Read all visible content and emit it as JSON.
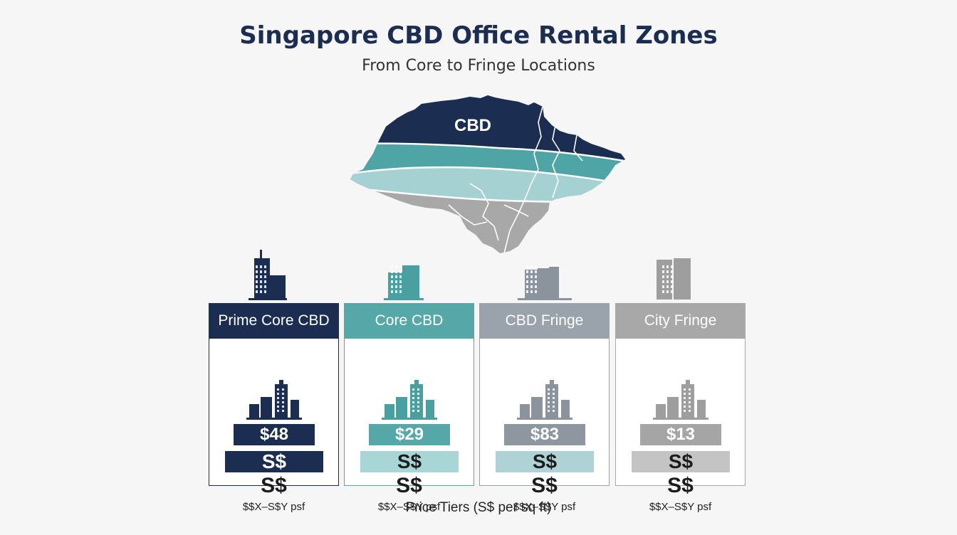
{
  "header": {
    "title": "Singapore CBD Office Rental Zones",
    "subtitle": "From Core to Fringe Locations"
  },
  "map": {
    "label": "CBD",
    "colors": {
      "core": "#1b2e52",
      "teal": "#4fa4a6",
      "light_teal": "#a6d1d3",
      "gray": "#a8a8a8"
    }
  },
  "zones": [
    {
      "name": "Prime Core CBD",
      "price": "$48",
      "tier_label": "S$",
      "tier_symbol": "S$",
      "range": "$$X–S$Y psf",
      "header_color": "#1b2e52",
      "price_color": "#1b2e52",
      "tier_bar_color": "#1b2e52",
      "tier_text_color": "#ffffff",
      "border_color": "#1b2e52",
      "icon_color": "#1b2e52"
    },
    {
      "name": "Core CBD",
      "price": "$29",
      "tier_label": "S$",
      "tier_symbol": "S$",
      "range": "$$X–S$Y psf",
      "header_color": "#55a7a8",
      "price_color": "#55a7a8",
      "tier_bar_color": "#a8d5d6",
      "tier_text_color": "#1c1c1c",
      "border_color": "#55a7a8",
      "icon_color": "#4a9fa1"
    },
    {
      "name": "CBD Fringe",
      "price": "$83",
      "tier_label": "S$",
      "tier_symbol": "S$",
      "range": "$$X–S$Y psf",
      "header_color": "#9aa3ac",
      "price_color": "#8e979f",
      "tier_bar_color": "#aed2d5",
      "tier_text_color": "#1c1c1c",
      "border_color": "#9aa3ac",
      "icon_color": "#8b949c"
    },
    {
      "name": "City Fringe",
      "price": "$13",
      "tier_label": "S$",
      "tier_symbol": "S$",
      "range": "$$X–S$Y psf",
      "header_color": "#a8a8a8",
      "price_color": "#a5a5a5",
      "tier_bar_color": "#c4c4c4",
      "tier_text_color": "#1c1c1c",
      "border_color": "#a8a8a8",
      "icon_color": "#9e9e9e"
    }
  ],
  "footer": {
    "label": "Price Tiers (S$ per sq ft)"
  }
}
